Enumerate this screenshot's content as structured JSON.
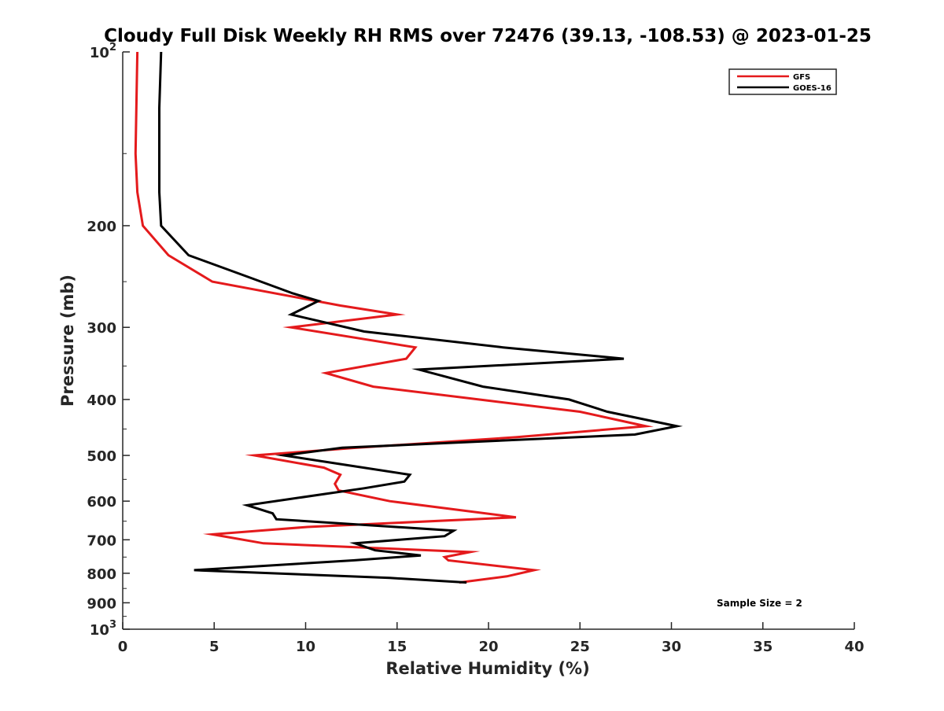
{
  "chart_data": {
    "type": "line",
    "title": "Cloudy Full Disk Weekly RH RMS over 72476 (39.13, -108.53) @ 2023-01-25",
    "xlabel": "Relative Humidity (%)",
    "ylabel": "Pressure (mb)",
    "xlim": [
      0,
      40
    ],
    "ylim": [
      100,
      1000
    ],
    "y_scale": "log",
    "y_reversed": true,
    "x_ticks": [
      0,
      5,
      10,
      15,
      20,
      25,
      30,
      35,
      40
    ],
    "y_ticks": [
      {
        "value": 100,
        "label": "10",
        "sup": "2"
      },
      {
        "value": 200,
        "label": "200"
      },
      {
        "value": 300,
        "label": "300"
      },
      {
        "value": 400,
        "label": "400"
      },
      {
        "value": 500,
        "label": "500"
      },
      {
        "value": 600,
        "label": "600"
      },
      {
        "value": 700,
        "label": "700"
      },
      {
        "value": 800,
        "label": "800"
      },
      {
        "value": 900,
        "label": "900"
      },
      {
        "value": 1000,
        "label": "10",
        "sup": "3"
      }
    ],
    "grid": false,
    "legend_position": "top-right",
    "annotation": "Sample Size = 2",
    "series": [
      {
        "name": "GFS",
        "color": "#e41a1c",
        "points": [
          [
            0.8,
            100
          ],
          [
            0.7,
            150
          ],
          [
            0.8,
            175
          ],
          [
            1.1,
            200
          ],
          [
            2.5,
            225
          ],
          [
            4.9,
            250
          ],
          [
            11.9,
            275
          ],
          [
            15.0,
            285
          ],
          [
            9.2,
            300
          ],
          [
            16.0,
            325
          ],
          [
            15.5,
            340
          ],
          [
            11.1,
            360
          ],
          [
            13.7,
            380
          ],
          [
            25.0,
            420
          ],
          [
            28.6,
            445
          ],
          [
            21.5,
            465
          ],
          [
            12.8,
            485
          ],
          [
            7.2,
            500
          ],
          [
            11.0,
            525
          ],
          [
            11.9,
            540
          ],
          [
            11.6,
            560
          ],
          [
            11.8,
            575
          ],
          [
            14.6,
            600
          ],
          [
            21.5,
            640
          ],
          [
            10.1,
            665
          ],
          [
            4.9,
            685
          ],
          [
            7.7,
            710
          ],
          [
            19.0,
            735
          ],
          [
            17.6,
            750
          ],
          [
            17.8,
            760
          ],
          [
            22.5,
            790
          ],
          [
            21.0,
            810
          ],
          [
            18.4,
            830
          ]
        ]
      },
      {
        "name": "GOES-16",
        "color": "#000000",
        "points": [
          [
            2.1,
            100
          ],
          [
            2.0,
            125
          ],
          [
            2.0,
            150
          ],
          [
            2.0,
            175
          ],
          [
            2.1,
            200
          ],
          [
            3.6,
            225
          ],
          [
            6.8,
            245
          ],
          [
            9.3,
            262
          ],
          [
            10.7,
            270
          ],
          [
            9.2,
            285
          ],
          [
            13.2,
            305
          ],
          [
            20.8,
            325
          ],
          [
            27.4,
            340
          ],
          [
            16.2,
            355
          ],
          [
            19.7,
            380
          ],
          [
            24.4,
            400
          ],
          [
            26.5,
            420
          ],
          [
            30.3,
            445
          ],
          [
            28.0,
            460
          ],
          [
            12.0,
            485
          ],
          [
            8.8,
            500
          ],
          [
            12.3,
            520
          ],
          [
            15.7,
            540
          ],
          [
            15.4,
            555
          ],
          [
            13.2,
            570
          ],
          [
            6.8,
            610
          ],
          [
            8.2,
            630
          ],
          [
            8.4,
            645
          ],
          [
            18.1,
            675
          ],
          [
            17.6,
            690
          ],
          [
            12.7,
            710
          ],
          [
            13.8,
            730
          ],
          [
            16.3,
            745
          ],
          [
            12.6,
            760
          ],
          [
            3.9,
            790
          ],
          [
            14.6,
            815
          ],
          [
            18.8,
            830
          ]
        ]
      }
    ]
  }
}
